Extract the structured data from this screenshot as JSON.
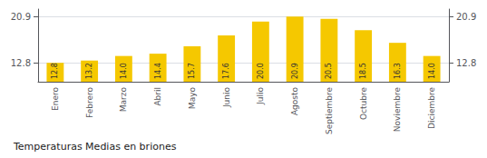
{
  "chart_data": {
    "type": "bar",
    "title": "Temperaturas Medias en briones",
    "categories": [
      "Enero",
      "Febrero",
      "Marzo",
      "Abril",
      "Mayo",
      "Junio",
      "Julio",
      "Agosto",
      "Septiembre",
      "Octubre",
      "Noviembre",
      "Diciembre"
    ],
    "values": [
      12.8,
      13.2,
      14.0,
      14.4,
      15.7,
      17.6,
      20.0,
      20.9,
      20.5,
      18.5,
      16.3,
      14.0
    ],
    "value_labels": [
      "12.8",
      "13.2",
      "14.0",
      "14.4",
      "15.7",
      "17.6",
      "20.0",
      "20.9",
      "20.5",
      "18.5",
      "16.3",
      "14.0"
    ],
    "color": "#F5C800",
    "ylim": [
      9.5,
      22.2
    ],
    "yticks": [
      12.8,
      20.9
    ],
    "y2lim": [
      9.5,
      22.2
    ],
    "y2ticks": [
      12.8,
      20.9
    ],
    "grid": true,
    "data_labels": true
  }
}
